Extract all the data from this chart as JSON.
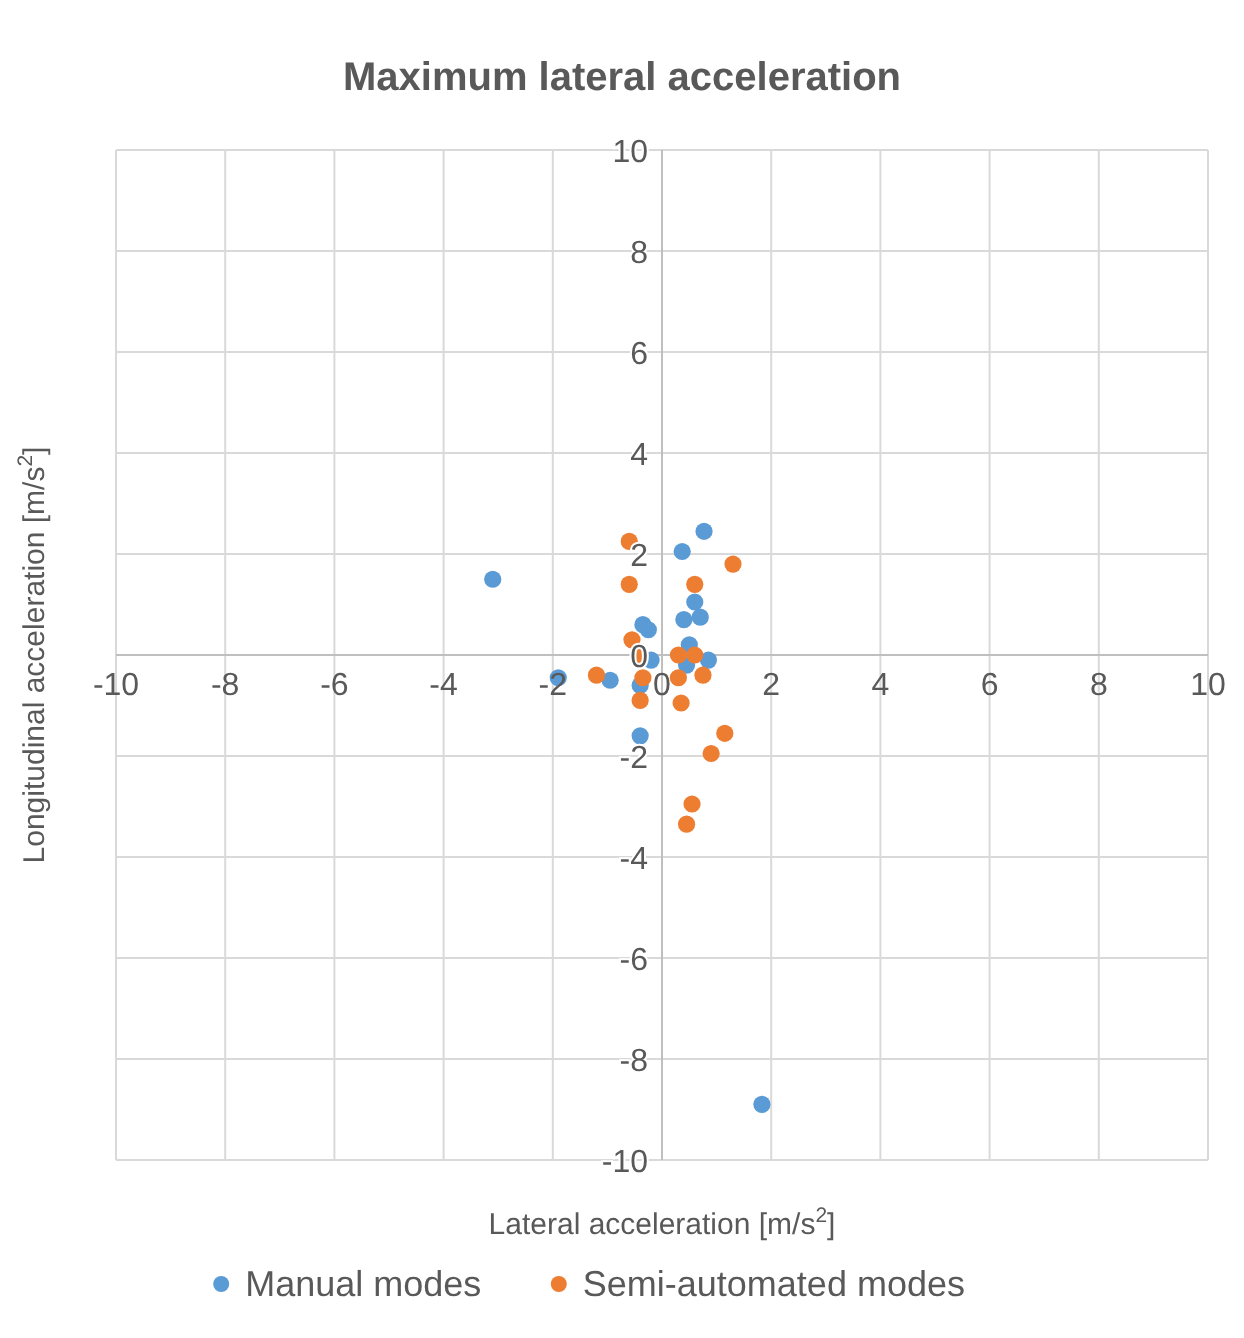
{
  "chart_data": {
    "type": "scatter",
    "title": "Maximum lateral acceleration",
    "xlabel": "Lateral acceleration [m/s$^{2}$]",
    "ylabel": "Longitudinal acceleration [m/s$^{2}$]",
    "xlim": [
      -10,
      10
    ],
    "ylim": [
      -10,
      10
    ],
    "xticks": [
      -10,
      -8,
      -6,
      -4,
      -2,
      0,
      2,
      4,
      6,
      8,
      10
    ],
    "yticks": [
      -10,
      -8,
      -6,
      -4,
      -2,
      0,
      2,
      4,
      6,
      8,
      10
    ],
    "grid": true,
    "legend": "bottom",
    "marker": "circle",
    "series": [
      {
        "name": "Manual modes",
        "color": "#5b9bd5",
        "x": [
          -3.1,
          -1.9,
          1.83,
          0.77,
          0.37,
          0.6,
          0.7,
          0.4,
          -0.4,
          0.85,
          -0.35,
          -0.25,
          -0.4,
          -0.95,
          0.5,
          0.45,
          -0.2
        ],
        "values": [
          1.5,
          -0.45,
          -8.9,
          2.45,
          2.05,
          1.05,
          0.75,
          0.7,
          -1.6,
          -0.1,
          0.6,
          0.5,
          -0.6,
          -0.5,
          0.2,
          -0.2,
          -0.1
        ]
      },
      {
        "name": "Semi-automated modes",
        "color": "#ed7d31",
        "x": [
          -0.6,
          -0.6,
          0.6,
          1.3,
          -0.55,
          -0.4,
          -1.2,
          -0.35,
          -0.4,
          0.35,
          0.3,
          0.6,
          0.75,
          0.3,
          1.15,
          0.9,
          0.55,
          0.45
        ],
        "values": [
          2.25,
          1.4,
          1.4,
          1.8,
          0.3,
          0,
          -0.4,
          -0.45,
          -0.9,
          -0.95,
          0,
          0,
          -0.4,
          -0.45,
          -1.55,
          -1.95,
          -2.95,
          -3.35
        ]
      }
    ]
  }
}
